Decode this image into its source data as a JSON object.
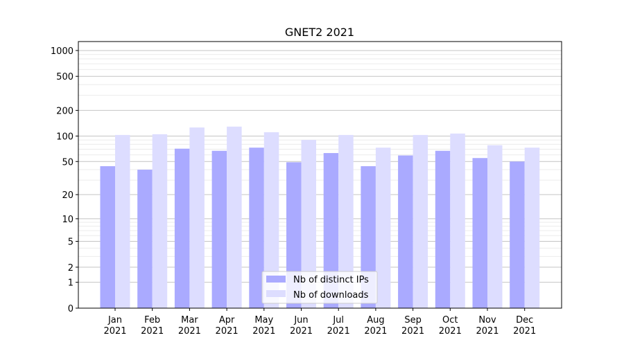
{
  "chart_data": {
    "type": "bar",
    "title": "GNET2 2021",
    "xlabel": "",
    "ylabel": "",
    "yscale": "symlog (log10(1+y))",
    "ylim": [
      0,
      1200
    ],
    "yticks": [
      0,
      1,
      2,
      5,
      10,
      20,
      50,
      100,
      200,
      500,
      1000
    ],
    "grid": true,
    "legend_position": "bottom-center",
    "categories": [
      "Jan\n2021",
      "Feb\n2021",
      "Mar\n2021",
      "Apr\n2021",
      "May\n2021",
      "Jun\n2021",
      "Jul\n2021",
      "Aug\n2021",
      "Sep\n2021",
      "Oct\n2021",
      "Nov\n2021",
      "Dec\n2021"
    ],
    "series": [
      {
        "name": "Nb of distinct IPs",
        "color": "#aaaaff",
        "values": [
          44,
          40,
          71,
          67,
          73,
          49,
          63,
          44,
          59,
          67,
          55,
          50
        ]
      },
      {
        "name": "Nb of downloads",
        "color": "#ddddff",
        "values": [
          103,
          105,
          126,
          129,
          111,
          90,
          103,
          73,
          103,
          107,
          78,
          73
        ]
      }
    ]
  }
}
